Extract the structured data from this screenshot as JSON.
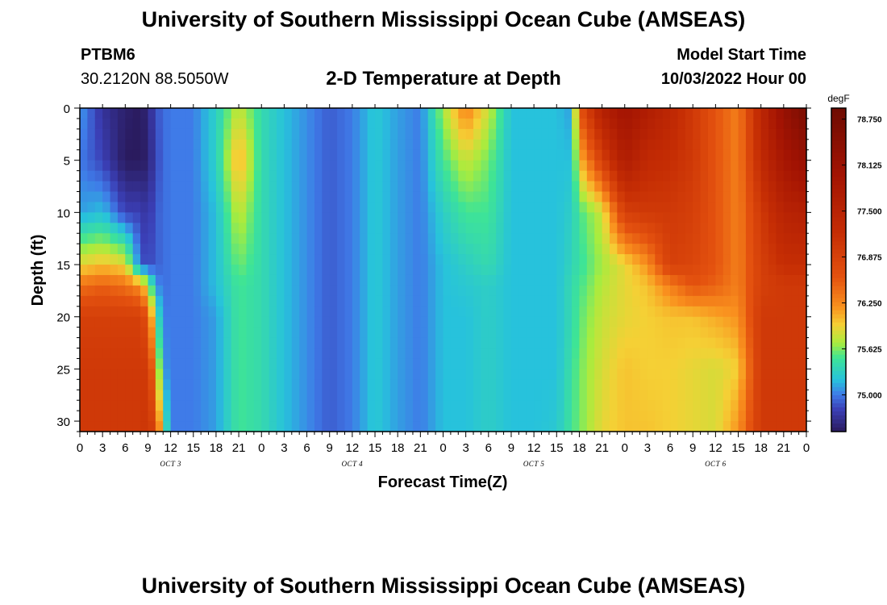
{
  "header": {
    "title": "University of Southern Mississippi Ocean Cube (AMSEAS)",
    "station_id": "PTBM6",
    "coordinates": "30.2120N  88.5050W",
    "model_start_label": "Model Start Time",
    "model_start_value": "10/03/2022 Hour 00"
  },
  "footer": {
    "title": "University of Southern Mississippi Ocean Cube (AMSEAS)"
  },
  "chart_data": {
    "type": "heatmap",
    "title": "2-D Temperature at Depth",
    "xlabel": "Forecast Time(Z)",
    "ylabel": "Depth (ft)",
    "xlim": [
      0,
      96
    ],
    "ylim": [
      0,
      31
    ],
    "y_inverted": true,
    "x_ticks": [
      0,
      3,
      6,
      9,
      12,
      15,
      18,
      21,
      24,
      27,
      30,
      33,
      36,
      39,
      42,
      45,
      48,
      51,
      54,
      57,
      60,
      63,
      66,
      69,
      72,
      75,
      78,
      81,
      84,
      87,
      90,
      93,
      96
    ],
    "x_tick_labels": [
      "0",
      "3",
      "6",
      "9",
      "12",
      "15",
      "18",
      "21",
      "0",
      "3",
      "6",
      "9",
      "12",
      "15",
      "18",
      "21",
      "0",
      "3",
      "6",
      "9",
      "12",
      "15",
      "18",
      "21",
      "0",
      "3",
      "6",
      "9",
      "12",
      "15",
      "18",
      "21",
      "0"
    ],
    "date_labels": [
      {
        "x": 12,
        "text": "OCT 3"
      },
      {
        "x": 36,
        "text": "OCT 4"
      },
      {
        "x": 60,
        "text": "OCT 5"
      },
      {
        "x": 84,
        "text": "OCT 6"
      }
    ],
    "y_ticks": [
      0,
      5,
      10,
      15,
      20,
      25,
      30
    ],
    "y_tick_labels": [
      "0",
      "5",
      "10",
      "15",
      "20",
      "25",
      "30"
    ],
    "colorbar": {
      "unit": "degF",
      "min": 74.5,
      "max": 78.9,
      "tick_values": [
        78.75,
        78.125,
        77.5,
        76.875,
        76.25,
        75.625,
        75.0
      ],
      "tick_labels": [
        "78.750",
        "78.125",
        "77.500",
        "76.875",
        "76.250",
        "75.625",
        "75.000"
      ]
    },
    "colormap_stops": [
      {
        "v": 74.5,
        "c": "#2a1b5e"
      },
      {
        "v": 74.8,
        "c": "#3b3fb6"
      },
      {
        "v": 75.0,
        "c": "#3f7be8"
      },
      {
        "v": 75.2,
        "c": "#27c2dc"
      },
      {
        "v": 75.5,
        "c": "#3ee496"
      },
      {
        "v": 75.7,
        "c": "#a8ec3e"
      },
      {
        "v": 75.95,
        "c": "#f5d035"
      },
      {
        "v": 76.2,
        "c": "#f9901e"
      },
      {
        "v": 76.6,
        "c": "#e4520f"
      },
      {
        "v": 77.2,
        "c": "#c52d04"
      },
      {
        "v": 78.0,
        "c": "#a21303"
      },
      {
        "v": 78.9,
        "c": "#6e0c02"
      }
    ],
    "series": [
      {
        "x": 0,
        "depth": [
          0,
          5,
          10,
          15,
          17,
          20,
          25,
          31
        ],
        "temp": [
          75.1,
          75.0,
          75.1,
          75.9,
          76.4,
          76.9,
          77.0,
          77.0
        ]
      },
      {
        "x": 3,
        "depth": [
          0,
          5,
          10,
          15,
          17,
          20,
          25,
          31
        ],
        "temp": [
          74.7,
          74.8,
          75.2,
          76.0,
          76.5,
          76.9,
          77.0,
          77.0
        ]
      },
      {
        "x": 6,
        "depth": [
          0,
          5,
          10,
          15,
          17,
          20,
          25,
          31
        ],
        "temp": [
          74.55,
          74.5,
          74.8,
          75.9,
          76.4,
          76.9,
          77.0,
          77.0
        ]
      },
      {
        "x": 8,
        "depth": [
          0,
          5,
          10,
          15,
          17,
          20,
          25,
          31
        ],
        "temp": [
          74.5,
          74.5,
          74.8,
          74.9,
          76.2,
          76.9,
          77.0,
          77.0
        ]
      },
      {
        "x": 9,
        "depth": [
          0,
          5,
          10,
          15,
          17,
          20,
          25,
          31
        ],
        "temp": [
          74.6,
          74.55,
          74.7,
          74.8,
          75.8,
          76.6,
          77.0,
          77.1
        ]
      },
      {
        "x": 10,
        "depth": [
          0,
          5,
          10,
          15,
          17,
          20,
          25,
          31
        ],
        "temp": [
          74.85,
          74.8,
          74.9,
          74.9,
          75.1,
          75.6,
          76.2,
          76.8
        ]
      },
      {
        "x": 11,
        "depth": [
          0,
          5,
          10,
          15,
          17,
          20,
          25,
          31
        ],
        "temp": [
          74.95,
          74.95,
          74.95,
          74.95,
          74.95,
          75.0,
          75.1,
          75.7
        ]
      },
      {
        "x": 12,
        "depth": [
          0,
          5,
          10,
          15,
          17,
          20,
          25,
          31
        ],
        "temp": [
          75.0,
          75.0,
          75.0,
          75.0,
          75.0,
          75.0,
          75.0,
          75.0
        ]
      },
      {
        "x": 15,
        "depth": [
          0,
          5,
          10,
          15,
          17,
          20,
          25,
          31
        ],
        "temp": [
          75.0,
          75.0,
          75.0,
          75.0,
          75.0,
          75.0,
          75.0,
          75.0
        ]
      },
      {
        "x": 18,
        "depth": [
          0,
          5,
          10,
          15,
          17,
          20,
          25,
          31
        ],
        "temp": [
          75.3,
          75.3,
          75.2,
          75.2,
          75.2,
          75.1,
          75.1,
          75.1
        ]
      },
      {
        "x": 21,
        "depth": [
          0,
          5,
          10,
          15,
          17,
          20,
          25,
          31
        ],
        "temp": [
          75.8,
          76.1,
          75.8,
          75.6,
          75.5,
          75.5,
          75.5,
          75.5
        ]
      },
      {
        "x": 24,
        "depth": [
          0,
          5,
          10,
          15,
          17,
          20,
          25,
          31
        ],
        "temp": [
          75.4,
          75.4,
          75.4,
          75.4,
          75.4,
          75.4,
          75.4,
          75.4
        ]
      },
      {
        "x": 27,
        "depth": [
          0,
          5,
          10,
          15,
          17,
          20,
          25,
          31
        ],
        "temp": [
          75.2,
          75.2,
          75.2,
          75.2,
          75.2,
          75.2,
          75.2,
          75.2
        ]
      },
      {
        "x": 30,
        "depth": [
          0,
          5,
          10,
          15,
          17,
          20,
          25,
          31
        ],
        "temp": [
          75.05,
          75.05,
          75.05,
          75.05,
          75.05,
          75.05,
          75.05,
          75.05
        ]
      },
      {
        "x": 33,
        "depth": [
          0,
          5,
          10,
          15,
          17,
          20,
          25,
          31
        ],
        "temp": [
          74.9,
          74.9,
          74.9,
          74.9,
          74.9,
          74.9,
          74.9,
          74.9
        ]
      },
      {
        "x": 36,
        "depth": [
          0,
          5,
          10,
          15,
          17,
          20,
          25,
          31
        ],
        "temp": [
          75.0,
          75.0,
          75.0,
          75.0,
          75.0,
          75.0,
          75.0,
          75.0
        ]
      },
      {
        "x": 39,
        "depth": [
          0,
          5,
          10,
          15,
          17,
          20,
          25,
          31
        ],
        "temp": [
          75.25,
          75.25,
          75.25,
          75.25,
          75.25,
          75.25,
          75.25,
          75.25
        ]
      },
      {
        "x": 42,
        "depth": [
          0,
          5,
          10,
          15,
          17,
          20,
          25,
          31
        ],
        "temp": [
          75.1,
          75.1,
          75.1,
          75.1,
          75.1,
          75.1,
          75.1,
          75.1
        ]
      },
      {
        "x": 45,
        "depth": [
          0,
          5,
          10,
          15,
          17,
          20,
          25,
          31
        ],
        "temp": [
          75.0,
          75.0,
          75.0,
          75.0,
          75.0,
          75.0,
          75.0,
          75.0
        ]
      },
      {
        "x": 48,
        "depth": [
          0,
          5,
          10,
          15,
          17,
          20,
          25,
          31
        ],
        "temp": [
          75.7,
          75.5,
          75.3,
          75.2,
          75.2,
          75.2,
          75.2,
          75.2
        ]
      },
      {
        "x": 51,
        "depth": [
          0,
          5,
          10,
          15,
          17,
          20,
          25,
          31
        ],
        "temp": [
          76.3,
          75.8,
          75.5,
          75.3,
          75.25,
          75.2,
          75.2,
          75.2
        ]
      },
      {
        "x": 54,
        "depth": [
          0,
          5,
          10,
          15,
          17,
          20,
          25,
          31
        ],
        "temp": [
          75.8,
          75.6,
          75.5,
          75.4,
          75.3,
          75.3,
          75.3,
          75.3
        ]
      },
      {
        "x": 57,
        "depth": [
          0,
          5,
          10,
          15,
          17,
          20,
          25,
          31
        ],
        "temp": [
          75.2,
          75.2,
          75.2,
          75.2,
          75.2,
          75.2,
          75.2,
          75.2
        ]
      },
      {
        "x": 60,
        "depth": [
          0,
          5,
          10,
          15,
          17,
          20,
          25,
          31
        ],
        "temp": [
          75.2,
          75.2,
          75.2,
          75.2,
          75.2,
          75.2,
          75.2,
          75.2
        ]
      },
      {
        "x": 63,
        "depth": [
          0,
          5,
          10,
          15,
          17,
          20,
          25,
          31
        ],
        "temp": [
          75.2,
          75.2,
          75.2,
          75.2,
          75.2,
          75.2,
          75.2,
          75.25
        ]
      },
      {
        "x": 65,
        "depth": [
          0,
          5,
          10,
          15,
          17,
          20,
          25,
          31
        ],
        "temp": [
          75.1,
          75.2,
          75.3,
          75.35,
          75.4,
          75.4,
          75.45,
          75.5
        ]
      },
      {
        "x": 66,
        "depth": [
          0,
          5,
          10,
          15,
          17,
          20,
          25,
          31
        ],
        "temp": [
          76.6,
          76.0,
          75.5,
          75.45,
          75.5,
          75.55,
          75.6,
          75.6
        ]
      },
      {
        "x": 69,
        "depth": [
          0,
          5,
          10,
          15,
          17,
          20,
          25,
          31
        ],
        "temp": [
          77.6,
          76.9,
          75.8,
          75.7,
          75.75,
          75.8,
          75.85,
          75.9
        ]
      },
      {
        "x": 72,
        "depth": [
          0,
          5,
          10,
          15,
          17,
          20,
          25,
          31
        ],
        "temp": [
          78.0,
          77.7,
          76.9,
          75.9,
          75.9,
          75.9,
          76.0,
          76.0
        ]
      },
      {
        "x": 75,
        "depth": [
          0,
          5,
          10,
          15,
          17,
          20,
          25,
          31
        ],
        "temp": [
          77.7,
          77.3,
          77.0,
          76.2,
          76.0,
          75.95,
          75.95,
          76.0
        ]
      },
      {
        "x": 78,
        "depth": [
          0,
          5,
          10,
          15,
          17,
          20,
          25,
          31
        ],
        "temp": [
          77.4,
          77.2,
          77.0,
          76.9,
          76.3,
          76.0,
          75.95,
          75.95
        ]
      },
      {
        "x": 81,
        "depth": [
          0,
          5,
          10,
          15,
          17,
          20,
          25,
          31
        ],
        "temp": [
          77.0,
          77.0,
          76.9,
          76.8,
          76.6,
          76.0,
          75.9,
          75.9
        ]
      },
      {
        "x": 84,
        "depth": [
          0,
          5,
          10,
          15,
          17,
          20,
          25,
          31
        ],
        "temp": [
          76.6,
          76.6,
          76.6,
          76.6,
          76.5,
          76.1,
          75.85,
          75.85
        ]
      },
      {
        "x": 87,
        "depth": [
          0,
          5,
          10,
          15,
          17,
          20,
          25,
          31
        ],
        "temp": [
          76.3,
          76.3,
          76.3,
          76.3,
          76.3,
          76.2,
          75.95,
          76.2
        ]
      },
      {
        "x": 90,
        "depth": [
          0,
          5,
          10,
          15,
          17,
          20,
          25,
          31
        ],
        "temp": [
          77.4,
          77.3,
          77.0,
          76.9,
          76.9,
          77.0,
          77.0,
          77.0
        ]
      },
      {
        "x": 93,
        "depth": [
          0,
          5,
          10,
          15,
          17,
          20,
          25,
          31
        ],
        "temp": [
          78.2,
          77.9,
          77.5,
          77.2,
          77.0,
          77.0,
          77.0,
          77.0
        ]
      },
      {
        "x": 96,
        "depth": [
          0,
          5,
          10,
          15,
          17,
          20,
          25,
          31
        ],
        "temp": [
          78.7,
          78.2,
          77.6,
          77.2,
          77.0,
          77.0,
          77.0,
          77.0
        ]
      }
    ]
  }
}
